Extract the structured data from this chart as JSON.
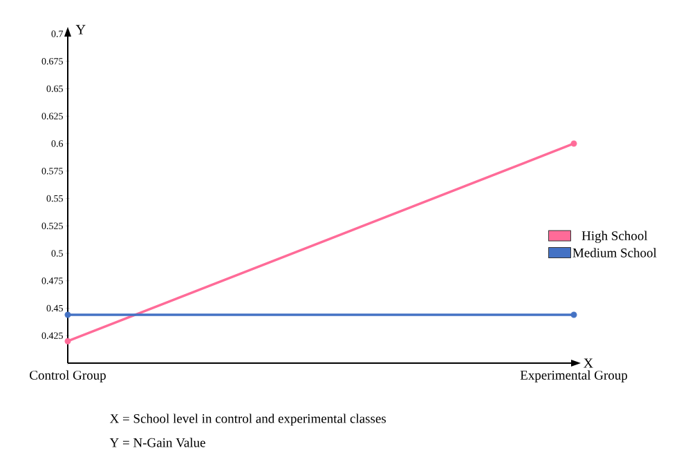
{
  "chart_data": {
    "type": "line",
    "xlabel": "X",
    "ylabel": "Y",
    "categories": [
      "Control Group",
      "Experimental Group"
    ],
    "series": [
      {
        "name": "High School",
        "color": "#ff6b98",
        "values": [
          0.42,
          0.6
        ]
      },
      {
        "name": "Medium School",
        "color": "#4472c4",
        "values": [
          0.444,
          0.444
        ]
      }
    ],
    "ylim": [
      0.4,
      0.7
    ],
    "yticks": [
      0.425,
      0.45,
      0.475,
      0.5,
      0.525,
      0.55,
      0.575,
      0.6,
      0.625,
      0.65,
      0.675,
      0.7
    ],
    "marker": "circle",
    "legend": "right",
    "grid": false,
    "annotations": [
      "X = School level in control and experimental classes",
      "Y = N-Gain Value"
    ]
  }
}
